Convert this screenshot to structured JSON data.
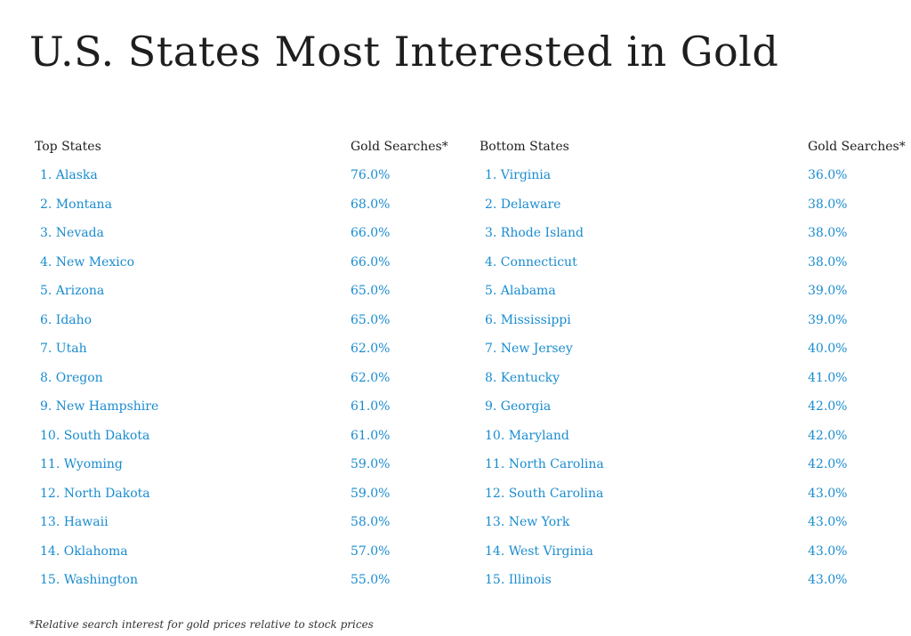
{
  "title": "U.S. States Most Interested in Gold",
  "footnote": "*Relative search interest for gold prices relative to stock prices",
  "top": {
    "header_name": "Top States",
    "header_value": "Gold Searches*",
    "rows": [
      {
        "name": "1. Alaska",
        "value": "76.0%"
      },
      {
        "name": "2. Montana",
        "value": "68.0%"
      },
      {
        "name": "3. Nevada",
        "value": "66.0%"
      },
      {
        "name": "4. New Mexico",
        "value": "66.0%"
      },
      {
        "name": "5. Arizona",
        "value": "65.0%"
      },
      {
        "name": "6. Idaho",
        "value": "65.0%"
      },
      {
        "name": "7. Utah",
        "value": "62.0%"
      },
      {
        "name": "8. Oregon",
        "value": "62.0%"
      },
      {
        "name": "9. New Hampshire",
        "value": "61.0%"
      },
      {
        "name": "10. South Dakota",
        "value": "61.0%"
      },
      {
        "name": "11. Wyoming",
        "value": "59.0%"
      },
      {
        "name": "12. North Dakota",
        "value": "59.0%"
      },
      {
        "name": "13. Hawaii",
        "value": "58.0%"
      },
      {
        "name": "14. Oklahoma",
        "value": "57.0%"
      },
      {
        "name": "15. Washington",
        "value": "55.0%"
      }
    ]
  },
  "bottom": {
    "header_name": "Bottom States",
    "header_value": "Gold Searches*",
    "rows": [
      {
        "name": "1. Virginia",
        "value": "36.0%"
      },
      {
        "name": "2. Delaware",
        "value": "38.0%"
      },
      {
        "name": "3. Rhode Island",
        "value": "38.0%"
      },
      {
        "name": "4. Connecticut",
        "value": "38.0%"
      },
      {
        "name": "5. Alabama",
        "value": "39.0%"
      },
      {
        "name": "6. Mississippi",
        "value": "39.0%"
      },
      {
        "name": "7. New Jersey",
        "value": "40.0%"
      },
      {
        "name": "8. Kentucky",
        "value": "41.0%"
      },
      {
        "name": "9. Georgia",
        "value": "42.0%"
      },
      {
        "name": "10. Maryland",
        "value": "42.0%"
      },
      {
        "name": "11. North Carolina",
        "value": "42.0%"
      },
      {
        "name": "12. South Carolina",
        "value": "43.0%"
      },
      {
        "name": "13. New York",
        "value": "43.0%"
      },
      {
        "name": "14. West Virginia",
        "value": "43.0%"
      },
      {
        "name": "15. Illinois",
        "value": "43.0%"
      }
    ]
  },
  "colors": {
    "link": "#1a8ccf",
    "text": "#222222"
  }
}
